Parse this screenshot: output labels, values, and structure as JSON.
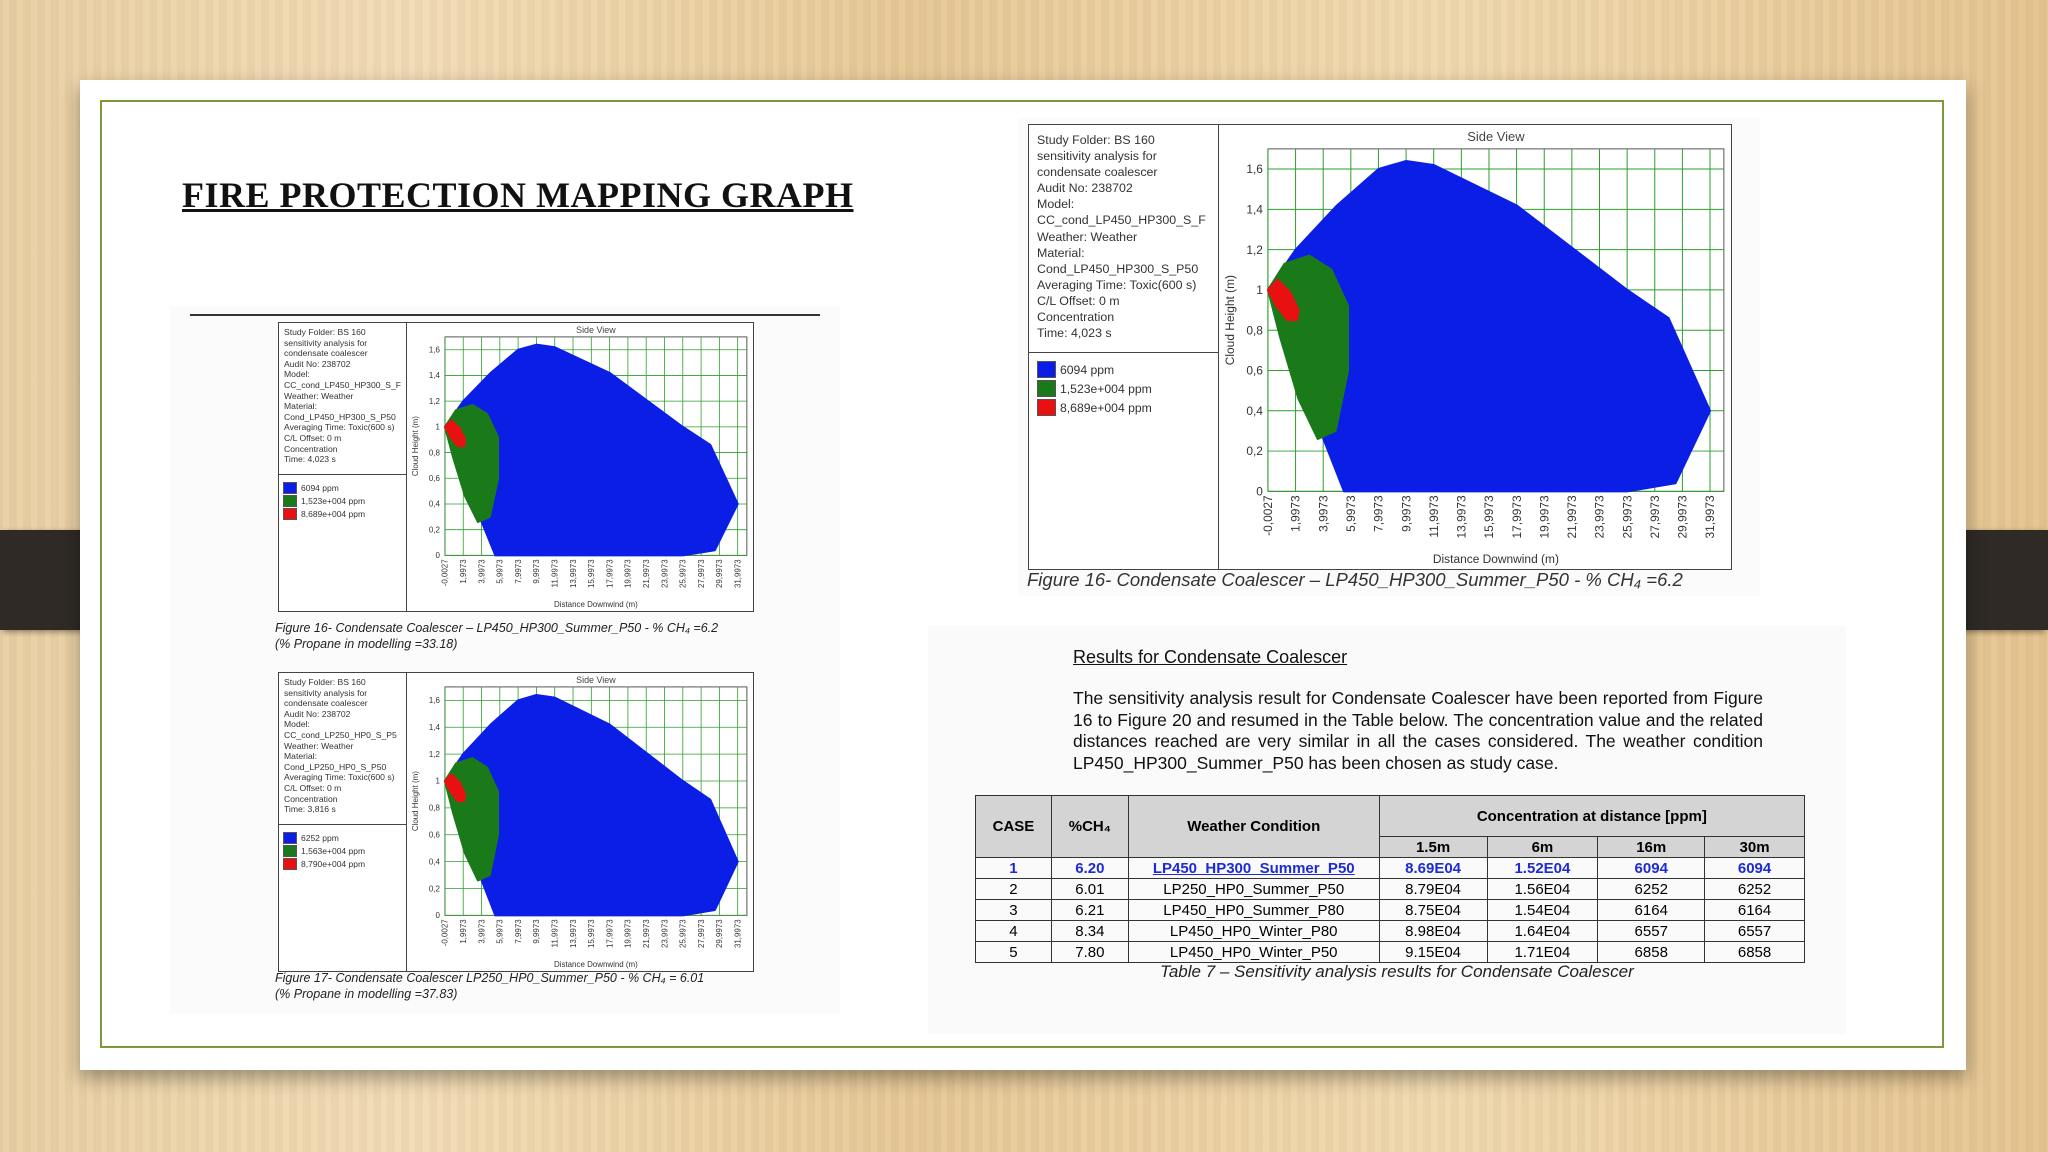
{
  "slide": {
    "title": "FIRE PROTECTION MAPPING GRAPH"
  },
  "figures": [
    {
      "id": "fig16_small",
      "info_lines": "Study Folder: BS 160\nsensitivity analysis for\ncondensate coalescer\nAudit No: 238702\nModel:\nCC_cond_LP450_HP300_S_F\nWeather: Weather\nMaterial:\nCond_LP450_HP300_S_P50\nAveraging Time: Toxic(600 s)\nC/L Offset: 0 m\nConcentration\nTime: 4,023 s",
      "legend": [
        {
          "label": "6094 ppm",
          "color": "#0b1ee6"
        },
        {
          "label": "1,523e+004 ppm",
          "color": "#1a7a1a"
        },
        {
          "label": "8,689e+004 ppm",
          "color": "#e81010"
        }
      ],
      "caption_line1": "Figure 16- Condensate Coalescer – LP450_HP300_Summer_P50 - % CH₄ =6.2",
      "caption_line2": "(% Propane in modelling =33.18)"
    },
    {
      "id": "fig17_small",
      "info_lines": "Study Folder: BS 160\nsensitivity analysis for\ncondensate coalescer\nAudit No: 238702\nModel:\nCC_cond_LP250_HP0_S_P5\nWeather: Weather\nMaterial:\nCond_LP250_HP0_S_P50\nAveraging Time: Toxic(600 s)\nC/L Offset: 0 m\nConcentration\nTime: 3,816 s",
      "legend": [
        {
          "label": "6252 ppm",
          "color": "#0b1ee6"
        },
        {
          "label": "1,563e+004 ppm",
          "color": "#1a7a1a"
        },
        {
          "label": "8,790e+004 ppm",
          "color": "#e81010"
        }
      ],
      "caption_line1": "Figure 17- Condensate Coalescer LP250_HP0_Summer_P50 - % CH₄ = 6.01",
      "caption_line2": "(% Propane in modelling =37.83)"
    },
    {
      "id": "fig16_large",
      "info_lines": "Study Folder: BS 160\nsensitivity analysis for\ncondensate coalescer\nAudit No: 238702\nModel:\nCC_cond_LP450_HP300_S_F\nWeather: Weather\nMaterial:\nCond_LP450_HP300_S_P50\nAveraging Time: Toxic(600 s)\nC/L Offset: 0 m\nConcentration\nTime: 4,023 s",
      "legend": [
        {
          "label": "6094 ppm",
          "color": "#0b1ee6"
        },
        {
          "label": "1,523e+004 ppm",
          "color": "#1a7a1a"
        },
        {
          "label": "8,689e+004 ppm",
          "color": "#e81010"
        }
      ],
      "caption_line1": "Figure 16- Condensate Coalescer – LP450_HP300_Summer_P50 - % CH₄ =6.2",
      "caption_line2": ""
    }
  ],
  "chart_data": {
    "type": "area",
    "title": "Side View",
    "xlabel": "Distance Downwind (m)",
    "ylabel": "Cloud Height (m)",
    "xlim": [
      -0.0027,
      33
    ],
    "ylim": [
      0,
      1.7
    ],
    "x_ticks": [
      "-0,0027",
      "1,9973",
      "3,9973",
      "5,9973",
      "7,9973",
      "9,9973",
      "11,9973",
      "13,9973",
      "15,9973",
      "17,9973",
      "19,9973",
      "21,9973",
      "23,9973",
      "25,9973",
      "27,9973",
      "29,9973",
      "31,9973"
    ],
    "y_ticks": [
      "0",
      "0,2",
      "0,4",
      "0,6",
      "0,8",
      "1",
      "1,2",
      "1,4",
      "1,6"
    ],
    "grid": true,
    "series": [
      {
        "name": "6094 ppm",
        "color": "#0b1ee6",
        "x": [
          0,
          2,
          5,
          8,
          10,
          12,
          18,
          26,
          29,
          32,
          29.5,
          26,
          20,
          10,
          5.5,
          3.5,
          1.5,
          0
        ],
        "y": [
          1.0,
          1.2,
          1.42,
          1.6,
          1.64,
          1.62,
          1.42,
          1.0,
          0.86,
          0.4,
          0.04,
          0.0,
          0.0,
          0.0,
          0.0,
          0.35,
          0.7,
          1.0
        ]
      },
      {
        "name": "1,523e+004 ppm",
        "color": "#1a7a1a",
        "x": [
          0,
          1.2,
          3,
          4.6,
          5.8,
          5.8,
          4.9,
          3.6,
          2.2,
          0.9,
          0
        ],
        "y": [
          1.0,
          1.13,
          1.17,
          1.1,
          0.92,
          0.6,
          0.3,
          0.26,
          0.46,
          0.76,
          1.0
        ]
      },
      {
        "name": "8,689e+004 ppm",
        "color": "#e81010",
        "x": [
          0,
          0.7,
          1.6,
          2.2,
          2.1,
          1.4,
          0.6,
          0
        ],
        "y": [
          1.0,
          1.05,
          0.99,
          0.9,
          0.85,
          0.85,
          0.92,
          1.0
        ]
      }
    ]
  },
  "results": {
    "heading": "Results for Condensate Coalescer",
    "paragraph": "The sensitivity analysis result for Condensate Coalescer have been reported from Figure 16 to Figure 20 and resumed in the Table below. The concentration value and the related distances reached are very similar in all the cases considered. The weather condition LP450_HP300_Summer_P50 has been chosen as study case.",
    "table": {
      "headers": {
        "case": "CASE",
        "ch4": "%CH₄",
        "weather": "Weather Condition",
        "concentration": "Concentration at distance [ppm]"
      },
      "distances": [
        "1.5m",
        "6m",
        "16m",
        "30m"
      ],
      "rows": [
        {
          "case": "1",
          "ch4": "6.20",
          "weather": "LP450_HP300_Summer_P50",
          "d1": "8.69E04",
          "d2": "1.52E04",
          "d3": "6094",
          "d4": "6094"
        },
        {
          "case": "2",
          "ch4": "6.01",
          "weather": "LP250_HP0_Summer_P50",
          "d1": "8.79E04",
          "d2": "1.56E04",
          "d3": "6252",
          "d4": "6252"
        },
        {
          "case": "3",
          "ch4": "6.21",
          "weather": "LP450_HP0_Summer_P80",
          "d1": "8.75E04",
          "d2": "1.54E04",
          "d3": "6164",
          "d4": "6164"
        },
        {
          "case": "4",
          "ch4": "8.34",
          "weather": "LP450_HP0_Winter_P80",
          "d1": "8.98E04",
          "d2": "1.64E04",
          "d3": "6557",
          "d4": "6557"
        },
        {
          "case": "5",
          "ch4": "7.80",
          "weather": "LP450_HP0_Winter_P50",
          "d1": "9.15E04",
          "d2": "1.71E04",
          "d3": "6858",
          "d4": "6858"
        }
      ],
      "caption": "Table 7 – Sensitivity analysis results for Condensate Coalescer"
    }
  }
}
